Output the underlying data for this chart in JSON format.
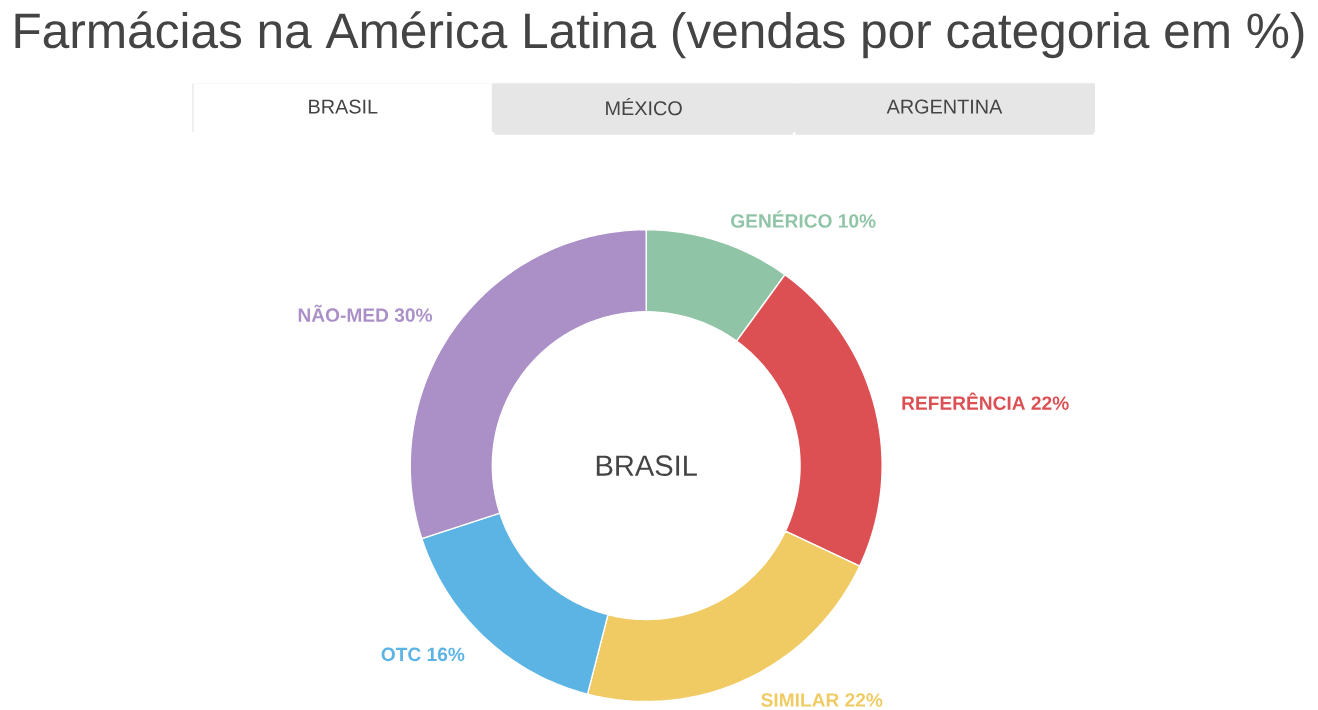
{
  "chart_data": {
    "type": "donut",
    "title": "Farmácias na América Latina (vendas por categoria em %)",
    "subtitle": "BRASIL",
    "annotations": [
      "BRASIL",
      "MÉXICO",
      "ARGENTINA"
    ],
    "categories": [
      "GENÉRICO",
      "REFERÊNCIA",
      "SIMILAR",
      "OTC",
      "NÃO-MED"
    ],
    "values": [
      10,
      22,
      22,
      16,
      30
    ],
    "value_labels": [
      "10%",
      "22%",
      "22%",
      "16%",
      "30%"
    ],
    "colors": [
      "#8fc5a6",
      "#dc5054",
      "#f0cb63",
      "#5cb4e5",
      "#ab90c8"
    ]
  }
}
